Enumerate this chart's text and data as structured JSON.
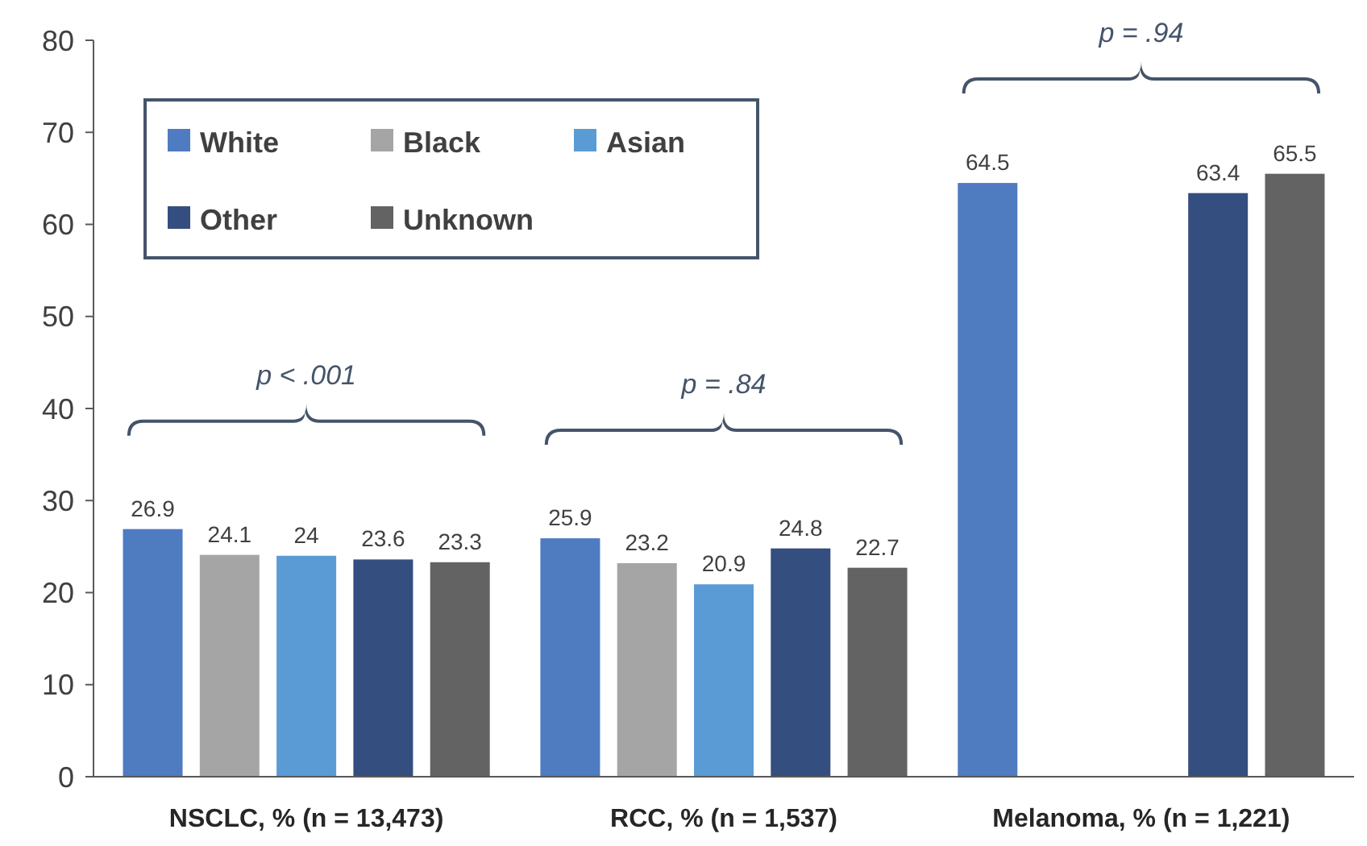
{
  "chart_data": {
    "type": "bar",
    "categories": [
      "NSCLC, % (n = 13,473)",
      "RCC, % (n = 1,537)",
      "Melanoma, % (n = 1,221)"
    ],
    "series": [
      {
        "name": "White",
        "color": "#4f7bc1",
        "values": [
          26.9,
          25.9,
          64.5
        ]
      },
      {
        "name": "Black",
        "color": "#a5a5a5",
        "values": [
          24.1,
          23.2,
          null
        ]
      },
      {
        "name": "Asian",
        "color": "#5b9bd5",
        "values": [
          24,
          20.9,
          null
        ]
      },
      {
        "name": "Other",
        "color": "#344e80",
        "values": [
          23.6,
          24.8,
          63.4
        ]
      },
      {
        "name": "Unknown",
        "color": "#636363",
        "values": [
          23.3,
          22.7,
          65.5
        ]
      }
    ],
    "ylim": [
      0,
      80
    ],
    "yticks": [
      0,
      10,
      20,
      30,
      40,
      50,
      60,
      70,
      80
    ],
    "grid": false,
    "legend": "top left",
    "data_labels": true,
    "annotations": [
      "p < .001",
      "p = .84",
      "p = .94"
    ]
  }
}
